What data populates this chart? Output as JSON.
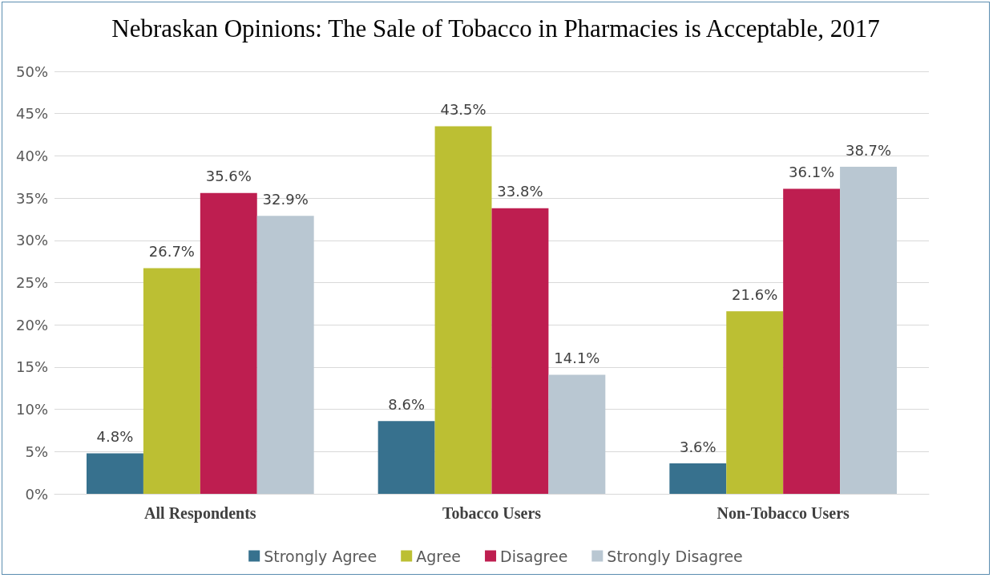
{
  "chart_data": {
    "type": "bar",
    "title": "Nebraskan Opinions: The Sale of Tobacco in Pharmacies is Acceptable, 2017",
    "categories": [
      "All Respondents",
      "Tobacco Users",
      "Non-Tobacco Users"
    ],
    "series": [
      {
        "name": "Strongly Agree",
        "color": "#37718e",
        "values": [
          4.8,
          8.6,
          3.6
        ],
        "value_labels": [
          "4.8%",
          "8.6%",
          "3.6%"
        ]
      },
      {
        "name": "Agree",
        "color": "#bcbf33",
        "values": [
          26.7,
          43.5,
          21.6
        ],
        "value_labels": [
          "26.7%",
          "43.5%",
          "21.6%"
        ]
      },
      {
        "name": "Disagree",
        "color": "#be1e50",
        "values": [
          35.6,
          33.8,
          36.1
        ],
        "value_labels": [
          "35.6%",
          "33.8%",
          "36.1%"
        ]
      },
      {
        "name": "Strongly Disagree",
        "color": "#b9c7d2",
        "values": [
          32.9,
          14.1,
          38.7
        ],
        "value_labels": [
          "32.9%",
          "14.1%",
          "38.7%"
        ]
      }
    ],
    "ylim": [
      0,
      50
    ],
    "yticks": [
      {
        "value": 0,
        "label": "0%"
      },
      {
        "value": 5,
        "label": "5%"
      },
      {
        "value": 10,
        "label": "10%"
      },
      {
        "value": 15,
        "label": "15%"
      },
      {
        "value": 20,
        "label": "20%"
      },
      {
        "value": 25,
        "label": "25%"
      },
      {
        "value": 30,
        "label": "30%"
      },
      {
        "value": 35,
        "label": "35%"
      },
      {
        "value": 40,
        "label": "40%"
      },
      {
        "value": 45,
        "label": "45%"
      },
      {
        "value": 50,
        "label": "50%"
      }
    ],
    "grid": "y",
    "legend": "bottom"
  }
}
